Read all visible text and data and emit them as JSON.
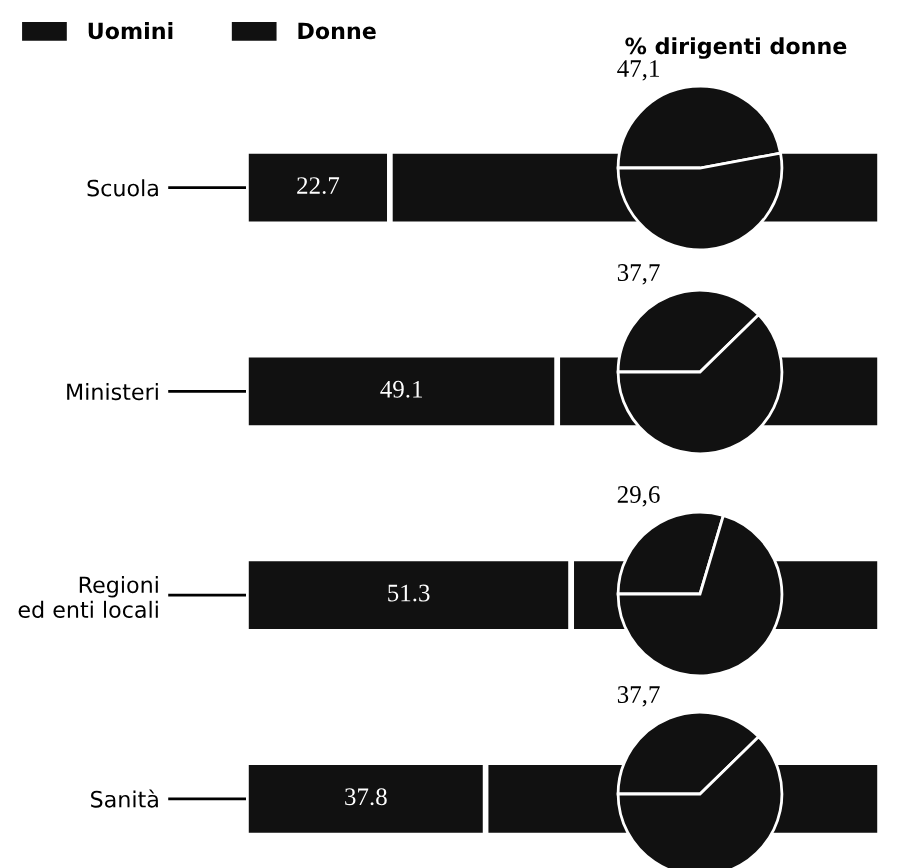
{
  "chart_data": [
    {
      "type": "bar",
      "orientation": "horizontal",
      "stacked": true,
      "legend": "top left",
      "categories": [
        "Scuola",
        "Ministeri",
        "Regioni\ned enti locali",
        "Sanità"
      ],
      "series": [
        {
          "name": "Uomini",
          "color": "#111111",
          "values": [
            22.7,
            49.1,
            51.3,
            37.8
          ],
          "value_labels": [
            "22.7",
            "49.1",
            "51.3",
            "37.8"
          ]
        },
        {
          "name": "Donne",
          "color": "#111111",
          "values": [
            77.3,
            50.9,
            48.7,
            62.2
          ]
        }
      ]
    },
    {
      "type": "pie",
      "title": "% dirigenti donne",
      "categories": [
        null,
        null
      ],
      "values": [
        47.1,
        52.9
      ],
      "colors": [
        "#111111",
        "#111111"
      ],
      "value_labels": [
        "47,1",
        null
      ]
    },
    {
      "type": "pie",
      "categories": [
        null,
        null
      ],
      "values": [
        37.7,
        62.3
      ],
      "colors": [
        "#111111",
        "#111111"
      ],
      "value_labels": [
        "37,7",
        null
      ]
    },
    {
      "type": "pie",
      "categories": [
        null,
        null
      ],
      "values": [
        29.6,
        70.4
      ],
      "colors": [
        "#111111",
        "#111111"
      ],
      "value_labels": [
        "29,6",
        null
      ]
    },
    {
      "type": "pie",
      "categories": [
        null,
        null
      ],
      "values": [
        37.7,
        62.3
      ],
      "colors": [
        "#111111",
        "#111111"
      ],
      "value_labels": [
        "37,7",
        null
      ]
    }
  ]
}
